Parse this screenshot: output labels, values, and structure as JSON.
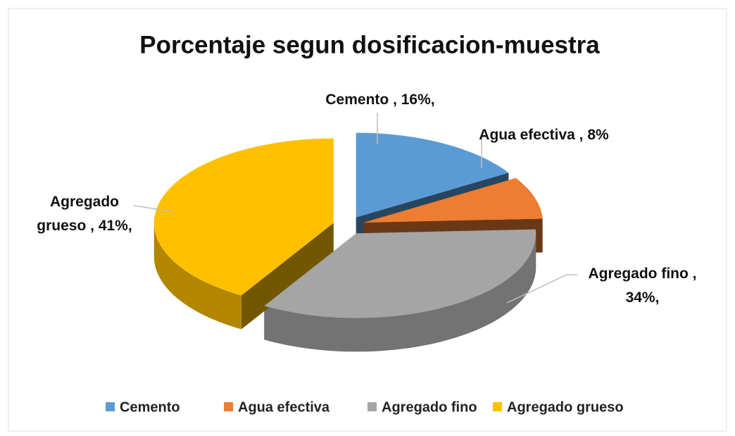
{
  "chart_data": {
    "type": "pie3d",
    "title": "Porcentaje segun dosificacion-muestra",
    "categories": [
      "Cemento",
      "Agua efectiva",
      "Agregado fino",
      "Agregado grueso"
    ],
    "values": [
      16,
      8,
      34,
      41
    ],
    "value_labels": [
      "Cemento , 16%,",
      "Agua efectiva , 8%",
      "Agregado fino , 34%,",
      "Agregado grueso , 41%,"
    ],
    "colors": [
      "#5b9bd5",
      "#ed7d31",
      "#a5a5a5",
      "#ffc000"
    ],
    "legend": "bottom"
  }
}
